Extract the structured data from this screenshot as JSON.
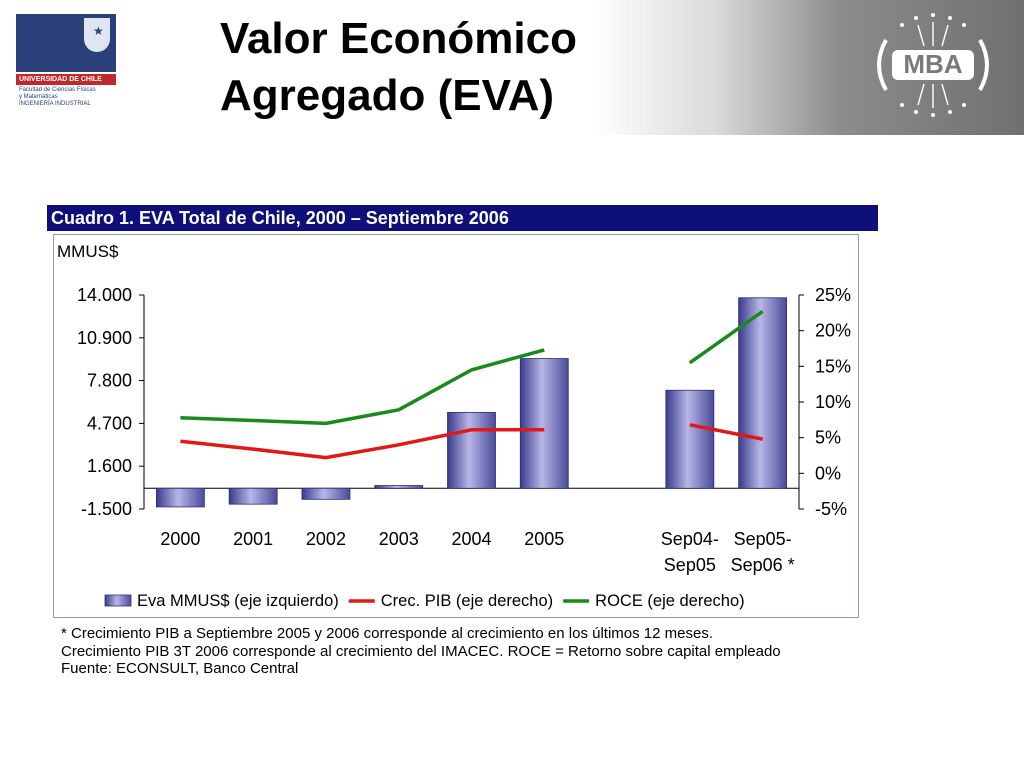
{
  "slide": {
    "title_line1": "Valor Económico",
    "title_line2": "Agregado (EVA)"
  },
  "logo_left": {
    "university": "UNIVERSIDAD DE CHILE",
    "faculty": "Facultad de Ciencias Físicas\ny Matemáticas\nINGENIERÍA INDUSTRIAL"
  },
  "logo_right": {
    "text": "MBA"
  },
  "chart_banner": "Cuadro 1. EVA Total de Chile, 2000 – Septiembre 2006",
  "chart_data": {
    "type": "bar",
    "title": "Cuadro 1. EVA Total de Chile, 2000 – Septiembre 2006",
    "unit_label": "MMUS$",
    "categories": [
      "2000",
      "2001",
      "2002",
      "2003",
      "2004",
      "2005",
      "",
      "Sep04-\nSep05",
      "Sep05-\nSep06 *"
    ],
    "y_left": {
      "ticks": [
        "14.000",
        "10.900",
        "7.800",
        "4.700",
        "1.600",
        "-1.500"
      ],
      "tick_values": [
        14000,
        10900,
        7800,
        4700,
        1600,
        -1500
      ],
      "lim": [
        -1500,
        14000
      ]
    },
    "y_right": {
      "ticks": [
        "25%",
        "20%",
        "15%",
        "10%",
        "5%",
        "0%",
        "-5%"
      ],
      "tick_values": [
        25,
        20,
        15,
        10,
        5,
        0,
        -5
      ],
      "lim": [
        -5,
        25
      ]
    },
    "series": [
      {
        "name": "Eva MMUS$ (eje izquierdo)",
        "axis": "left",
        "type": "bar",
        "color": "#5a5aa8",
        "values": [
          -1350,
          -1150,
          -800,
          200,
          5500,
          9400,
          null,
          7100,
          13800
        ]
      },
      {
        "name": "Crec. PIB (eje derecho)",
        "axis": "right",
        "type": "line",
        "color": "#e01818",
        "values": [
          4.5,
          3.4,
          2.2,
          4.0,
          6.1,
          6.1,
          null,
          6.8,
          4.8
        ]
      },
      {
        "name": "ROCE (eje derecho)",
        "axis": "right",
        "type": "line",
        "color": "#1a8a1a",
        "values": [
          7.8,
          7.4,
          7.0,
          8.9,
          14.5,
          17.3,
          null,
          15.5,
          22.7
        ]
      }
    ],
    "legend_position": "bottom",
    "grid": false
  },
  "footnote": {
    "line1": "* Crecimiento PIB a Septiembre 2005 y 2006 corresponde al crecimiento en los últimos 12 meses.",
    "line2": "Crecimiento PIB 3T 2006 corresponde al crecimiento del IMACEC.  ROCE = Retorno sobre capital empleado",
    "line3": "Fuente: ECONSULT, Banco Central"
  }
}
